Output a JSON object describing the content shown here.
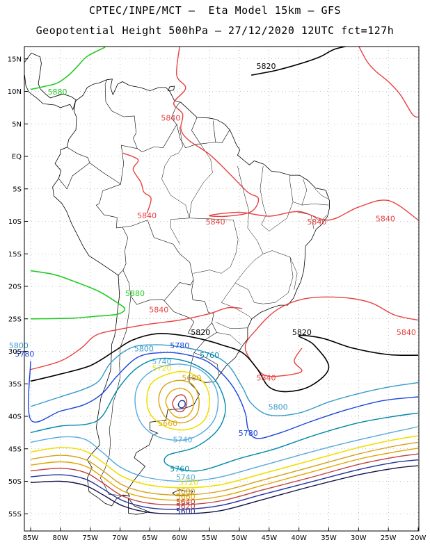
{
  "header": {
    "line1": "CPTEC/INPE/MCT –  Eta Model 15km – GFS",
    "line2": "Geopotential Height 500hPa – 27/12/2020 12UTC fct=127h"
  },
  "axes": {
    "lat_ticks": [
      "15N",
      "10N",
      "5N",
      "EQ",
      "5S",
      "10S",
      "15S",
      "20S",
      "25S",
      "30S",
      "35S",
      "40S",
      "45S",
      "50S",
      "55S"
    ],
    "lon_ticks": [
      "85W",
      "80W",
      "75W",
      "70W",
      "65W",
      "60W",
      "55W",
      "50W",
      "45W",
      "40W",
      "35W",
      "30W",
      "25W",
      "20W"
    ]
  },
  "colors": {
    "c5880": "#22cc22",
    "c5840": "#e84040",
    "c5820": "#000000",
    "c5800": "#3399cc",
    "c5780": "#1a44dd",
    "c5760": "#0088aa",
    "c5740": "#55aadd",
    "c5720": "#f0e000",
    "c5680": "#d4a017",
    "c5660": "#e2a500",
    "c5620": "#c04040",
    "c5600": "#223399",
    "land": "#000000"
  },
  "contour_labels": [
    {
      "text": "5880",
      "color": "#22cc22",
      "lon": -80.5,
      "lat": 9.5
    },
    {
      "text": "5840",
      "color": "#e84040",
      "lon": -61.5,
      "lat": 5.5
    },
    {
      "text": "5820",
      "color": "#000000",
      "lon": -45.5,
      "lat": 13.5
    },
    {
      "text": "5840",
      "color": "#e84040",
      "lon": -65.5,
      "lat": -9.5
    },
    {
      "text": "5840",
      "color": "#e84040",
      "lon": -54.0,
      "lat": -10.5
    },
    {
      "text": "5840",
      "color": "#e84040",
      "lon": -37.0,
      "lat": -10.5
    },
    {
      "text": "5840",
      "color": "#e84040",
      "lon": -25.5,
      "lat": -10.0
    },
    {
      "text": "5880",
      "color": "#22cc22",
      "lon": -67.5,
      "lat": -21.5
    },
    {
      "text": "5840",
      "color": "#e84040",
      "lon": -63.5,
      "lat": -24.0
    },
    {
      "text": "5820",
      "color": "#000000",
      "lon": -56.5,
      "lat": -27.5
    },
    {
      "text": "5840",
      "color": "#e84040",
      "lon": -22.0,
      "lat": -27.5
    },
    {
      "text": "5820",
      "color": "#000000",
      "lon": -39.5,
      "lat": -27.5
    },
    {
      "text": "5800",
      "color": "#3399cc",
      "lon": -66.0,
      "lat": -30.0
    },
    {
      "text": "5800",
      "color": "#3399cc",
      "lon": -87.0,
      "lat": -29.5
    },
    {
      "text": "5780",
      "color": "#1a44dd",
      "lon": -86.0,
      "lat": -30.8
    },
    {
      "text": "5780",
      "color": "#1a44dd",
      "lon": -60.0,
      "lat": -29.5
    },
    {
      "text": "5760",
      "color": "#0088aa",
      "lon": -55.0,
      "lat": -31.0
    },
    {
      "text": "5740",
      "color": "#55aadd",
      "lon": -63.0,
      "lat": -32.0
    },
    {
      "text": "5720",
      "color": "#f0e000",
      "lon": -63.0,
      "lat": -33.0
    },
    {
      "text": "5680",
      "color": "#d4a017",
      "lon": -58.0,
      "lat": -34.5
    },
    {
      "text": "5840",
      "color": "#e84040",
      "lon": -45.5,
      "lat": -34.5
    },
    {
      "text": "5800",
      "color": "#3399cc",
      "lon": -43.5,
      "lat": -39.0
    },
    {
      "text": "5660",
      "color": "#e2a500",
      "lon": -62.0,
      "lat": -41.5
    },
    {
      "text": "5780",
      "color": "#1a44dd",
      "lon": -48.5,
      "lat": -43.0
    },
    {
      "text": "5740",
      "color": "#55aadd",
      "lon": -59.5,
      "lat": -44.0
    },
    {
      "text": "5760",
      "color": "#0088aa",
      "lon": -60.0,
      "lat": -48.5
    },
    {
      "text": "5740",
      "color": "#55aadd",
      "lon": -59.0,
      "lat": -49.8
    },
    {
      "text": "5720",
      "color": "#f0e000",
      "lon": -58.5,
      "lat": -50.6
    },
    {
      "text": "5680",
      "color": "#d4a017",
      "lon": -59.0,
      "lat": -52.0
    },
    {
      "text": "5660",
      "color": "#e2a500",
      "lon": -59.0,
      "lat": -52.8
    },
    {
      "text": "5640",
      "color": "#c04040",
      "lon": -59.0,
      "lat": -53.6
    },
    {
      "text": "5620",
      "color": "#c04040",
      "lon": -59.0,
      "lat": -54.2
    },
    {
      "text": "5600",
      "color": "#223399",
      "lon": -59.0,
      "lat": -55.0
    }
  ]
}
